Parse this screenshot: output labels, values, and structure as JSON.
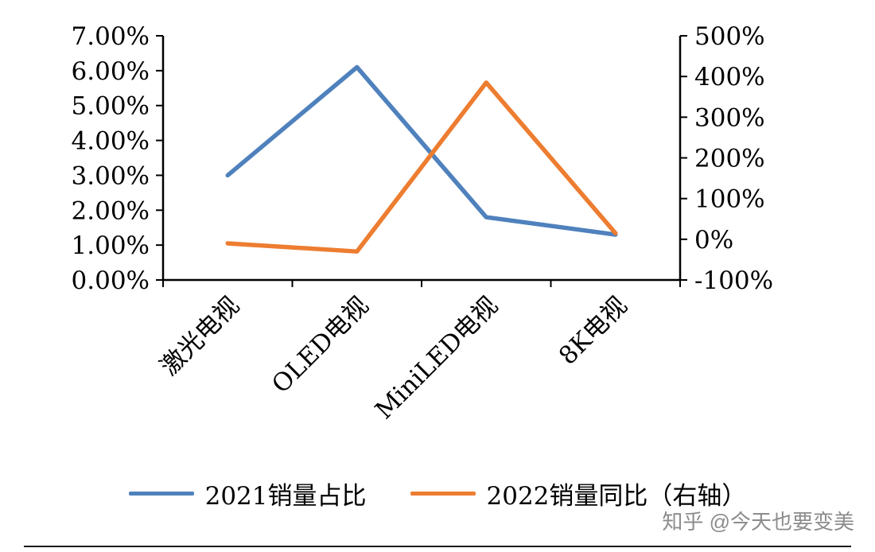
{
  "chart_data": {
    "type": "line",
    "categories": [
      "激光电视",
      "OLED电视",
      "MiniLED电视",
      "8K电视"
    ],
    "series": [
      {
        "name": "2021销量占比",
        "axis": "left",
        "color": "#4F81BD",
        "values": [
          3.0,
          6.1,
          1.8,
          1.3
        ]
      },
      {
        "name": "2022销量同比（右轴）",
        "axis": "right",
        "color": "#ED7D31",
        "values": [
          -10,
          -30,
          385,
          15
        ]
      }
    ],
    "left_axis": {
      "min": 0,
      "max": 7,
      "step": 1,
      "labels": [
        "0.00%",
        "1.00%",
        "2.00%",
        "3.00%",
        "4.00%",
        "5.00%",
        "6.00%",
        "7.00%"
      ]
    },
    "right_axis": {
      "min": -100,
      "max": 500,
      "step": 100,
      "labels": [
        "-100%",
        "0%",
        "100%",
        "200%",
        "300%",
        "400%",
        "500%"
      ]
    },
    "title": "",
    "xlabel": "",
    "ylabel": "",
    "grid": false,
    "legend_position": "bottom"
  },
  "watermark": "知乎 @今天也要变美"
}
